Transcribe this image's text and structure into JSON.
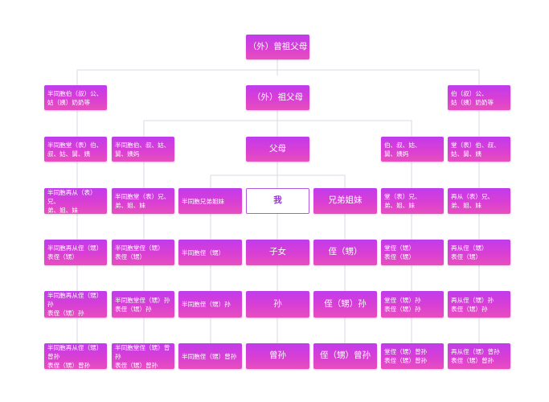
{
  "colors": {
    "box_gradient": [
      "#c13bec",
      "#e74fbd"
    ],
    "connector": "#d8d8e4",
    "self_border": "#b05ae0",
    "self_text": "#9b2fd6"
  },
  "top": {
    "great_grandparents": "（外）曾祖父母"
  },
  "row1": {
    "left": "半同胞伯（叔）公、\n姑（姨）奶奶等",
    "center": "（外）祖父母",
    "right": "伯（叔）公、\n姑（姨）奶奶等"
  },
  "row2": {
    "c1": "半同胞堂（表）伯、\n叔、姑、舅、姨",
    "c2": "半同胞伯、叔、姑、\n舅、姨妈",
    "center": "父母",
    "c6": "伯、叔、姑、\n舅、姨妈",
    "c7": "堂（表）伯、叔、\n姑、舅、姨"
  },
  "row3": {
    "c1": "半同胞再从（表）兄、\n弟、姐、妹",
    "c2": "半同胞堂（表）兄、\n弟、姐、妹",
    "c3": "半同胞兄弟姐妹",
    "c4": "我",
    "c5": "兄弟姐妹",
    "c6": "堂（表）兄、\n弟、姐、妹",
    "c7": "再从（表）兄、\n弟、姐、妹"
  },
  "row4": {
    "c1": "半同胞再从侄（甥）\n表侄（甥）",
    "c2": "半同胞堂侄（甥）\n表侄（甥）",
    "c3": "半同胞侄（甥）",
    "c4": "子女",
    "c5": "侄（甥）",
    "c6": "堂侄（甥）\n表侄（甥）",
    "c7": "再从侄（甥）\n表侄（甥）"
  },
  "row5": {
    "c1": "半同胞再从侄（甥）孙\n表侄（甥）孙",
    "c2": "半同胞堂侄（甥）孙\n表侄（甥）孙",
    "c3": "半同胞侄（甥）孙",
    "c4": "孙",
    "c5": "侄（甥）孙",
    "c6": "堂侄（甥）孙\n表侄（甥）孙",
    "c7": "再从侄（甥）孙\n表侄（甥）孙"
  },
  "row6": {
    "c1": "半同胞再从侄（甥）曾孙\n表侄（甥）曾孙",
    "c2": "半同胞堂侄（甥）曾孙\n表侄（甥）曾孙",
    "c3": "半同胞侄（甥）曾孙",
    "c4": "曾孙",
    "c5": "侄（甥）曾孙",
    "c6": "堂侄（甥）曾孙\n表侄（甥）曾孙",
    "c7": "再从侄（甥）曾孙\n表侄（甥）曾孙"
  }
}
